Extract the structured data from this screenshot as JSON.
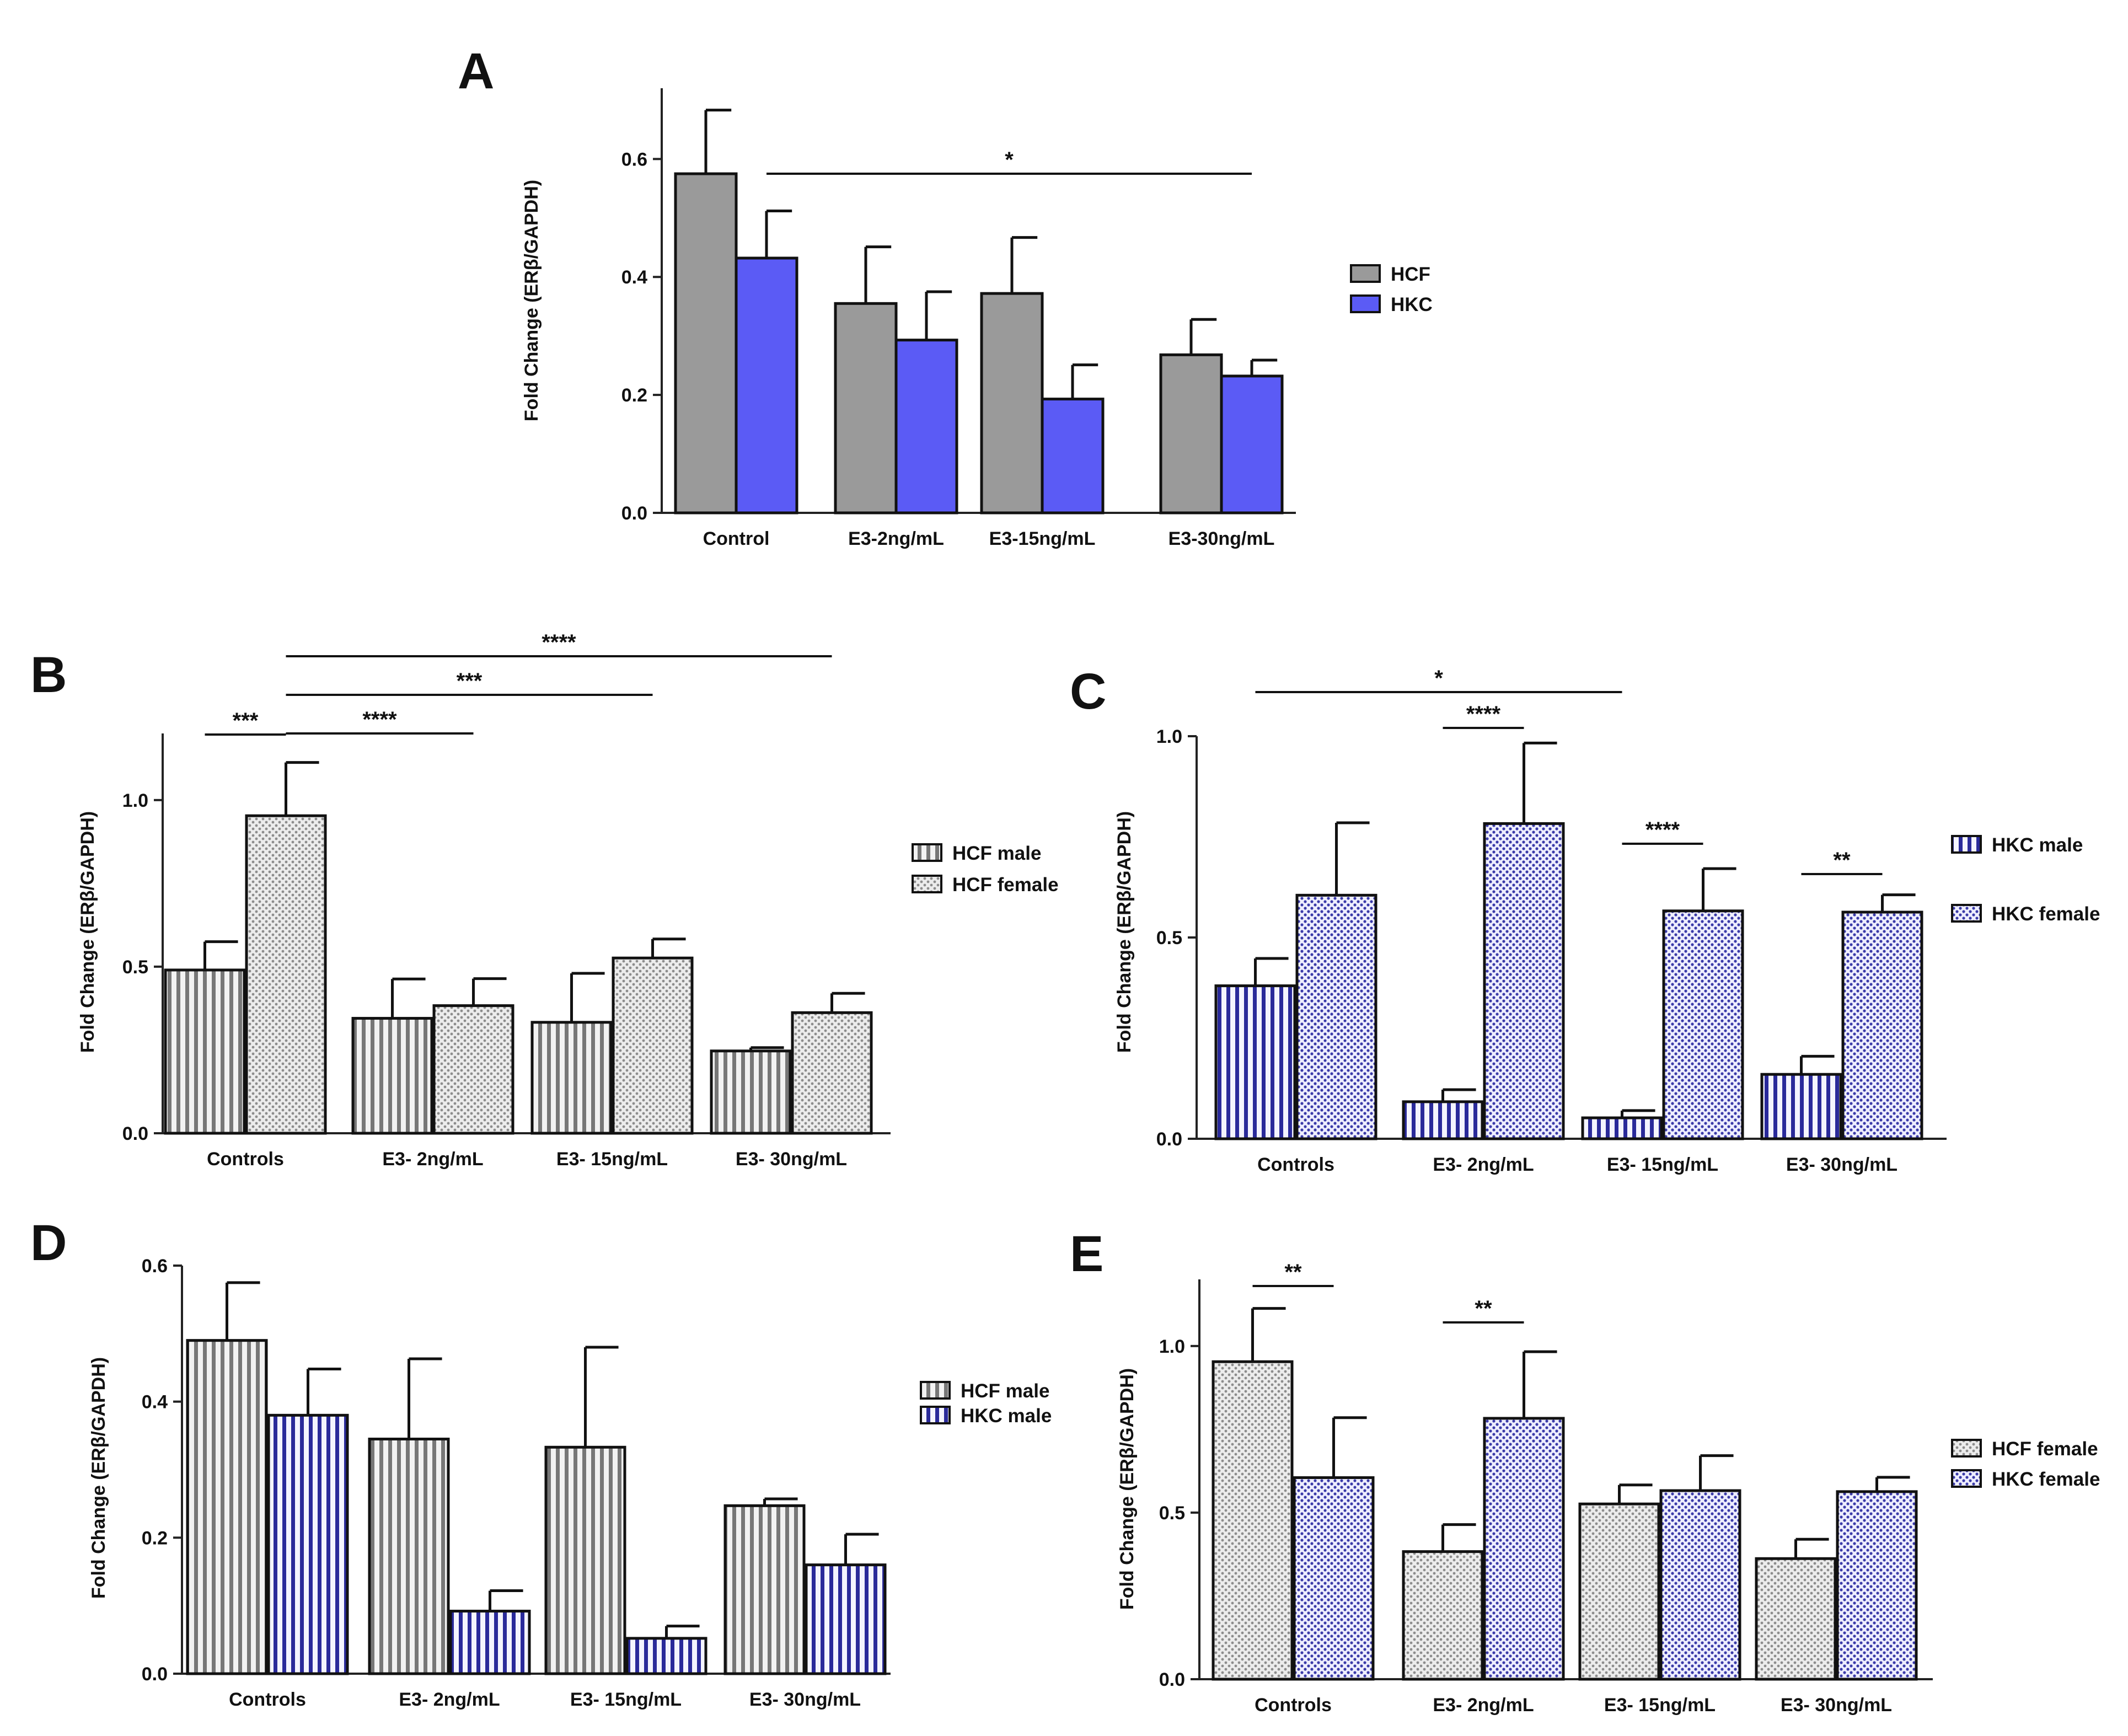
{
  "chart_data": [
    {
      "panel": "A",
      "type": "bar",
      "ylabel": "Fold Change (ERβ/GAPDH)",
      "ylim": [
        0,
        0.72
      ],
      "yticks": [
        0.0,
        0.2,
        0.4,
        0.6
      ],
      "tick_labels": [
        "0.0",
        "0.2",
        "0.4",
        "0.6"
      ],
      "categories": [
        "Control",
        "E3-2ng/mL",
        "E3-15ng/mL",
        "E3-30ng/mL"
      ],
      "series": [
        {
          "name": "HCF",
          "values": [
            0.575,
            0.355,
            0.372,
            0.268
          ],
          "errors": [
            0.108,
            0.096,
            0.095,
            0.06
          ],
          "pattern": "solid",
          "color": "#9a9a9a"
        },
        {
          "name": "HKC",
          "values": [
            0.432,
            0.293,
            0.193,
            0.232
          ],
          "errors": [
            0.08,
            0.082,
            0.058,
            0.027
          ],
          "pattern": "solid",
          "color": "#5b5bf5"
        }
      ],
      "significance": [
        {
          "label": "*",
          "from": [
            0,
            1
          ],
          "to": [
            3,
            1
          ]
        }
      ]
    },
    {
      "panel": "B",
      "type": "bar",
      "ylabel": "Fold Change (ERβ/GAPDH)",
      "ylim": [
        0,
        1.2
      ],
      "yticks": [
        0.0,
        0.5,
        1.0
      ],
      "tick_labels": [
        "0.0",
        "0.5",
        "1.0"
      ],
      "categories": [
        "Controls",
        "E3- 2ng/mL",
        "E3- 15ng/mL",
        "E3- 30ng/mL"
      ],
      "series": [
        {
          "name": "HCF male",
          "values": [
            0.49,
            0.345,
            0.333,
            0.247
          ],
          "errors": [
            0.085,
            0.118,
            0.147,
            0.01
          ],
          "pattern": "vstripe",
          "color": "#777777"
        },
        {
          "name": "HCF female",
          "values": [
            0.953,
            0.383,
            0.526,
            0.362
          ],
          "errors": [
            0.16,
            0.081,
            0.057,
            0.058
          ],
          "pattern": "dots",
          "color": "#8c8c8c"
        }
      ],
      "significance": [
        {
          "label": "***",
          "from": [
            0,
            0
          ],
          "to": [
            0,
            1
          ]
        },
        {
          "label": "****",
          "from": [
            0,
            1
          ],
          "to": [
            1,
            1
          ]
        },
        {
          "label": "***",
          "from": [
            0,
            1
          ],
          "to": [
            2,
            1
          ]
        },
        {
          "label": "****",
          "from": [
            0,
            1
          ],
          "to": [
            3,
            1
          ]
        }
      ]
    },
    {
      "panel": "C",
      "type": "bar",
      "ylabel": "Fold Change (ERβ/GAPDH)",
      "ylim": [
        0,
        1.0
      ],
      "yticks": [
        0.0,
        0.5,
        1.0
      ],
      "tick_labels": [
        "0.0",
        "0.5",
        "1.0"
      ],
      "categories": [
        "Controls",
        "E3- 2ng/mL",
        "E3- 15ng/mL",
        "E3- 30ng/mL"
      ],
      "series": [
        {
          "name": "HKC male",
          "values": [
            0.38,
            0.092,
            0.052,
            0.16
          ],
          "errors": [
            0.068,
            0.03,
            0.018,
            0.045
          ],
          "pattern": "vstripe",
          "color": "#2a2a9a"
        },
        {
          "name": "HKC female",
          "values": [
            0.605,
            0.783,
            0.566,
            0.563
          ],
          "errors": [
            0.18,
            0.2,
            0.105,
            0.043
          ],
          "pattern": "dots",
          "color": "#3a3aa8"
        }
      ],
      "significance": [
        {
          "label": "*",
          "from": [
            0,
            0
          ],
          "to": [
            2,
            0
          ]
        },
        {
          "label": "****",
          "from": [
            1,
            0
          ],
          "to": [
            1,
            1
          ]
        },
        {
          "label": "****",
          "from": [
            2,
            0
          ],
          "to": [
            2,
            1
          ]
        },
        {
          "label": "**",
          "from": [
            3,
            0
          ],
          "to": [
            3,
            1
          ]
        }
      ]
    },
    {
      "panel": "D",
      "type": "bar",
      "ylabel": "Fold Change (ERβ/GAPDH)",
      "ylim": [
        0,
        0.6
      ],
      "yticks": [
        0.0,
        0.2,
        0.4,
        0.6
      ],
      "tick_labels": [
        "0.0",
        "0.2",
        "0.4",
        "0.6"
      ],
      "categories": [
        "Controls",
        "E3- 2ng/mL",
        "E3- 15ng/mL",
        "E3- 30ng/mL"
      ],
      "series": [
        {
          "name": "HCF male",
          "values": [
            0.49,
            0.345,
            0.333,
            0.247
          ],
          "errors": [
            0.085,
            0.118,
            0.147,
            0.01
          ],
          "pattern": "vstripe",
          "color": "#777777"
        },
        {
          "name": "HKC male",
          "values": [
            0.38,
            0.092,
            0.052,
            0.16
          ],
          "errors": [
            0.068,
            0.03,
            0.018,
            0.045
          ],
          "pattern": "vstripe",
          "color": "#2a2a9a"
        }
      ],
      "significance": []
    },
    {
      "panel": "E",
      "type": "bar",
      "ylabel": "Fold Change (ERβ/GAPDH)",
      "ylim": [
        0,
        1.2
      ],
      "yticks": [
        0.0,
        0.5,
        1.0
      ],
      "tick_labels": [
        "0.0",
        "0.5",
        "1.0"
      ],
      "categories": [
        "Controls",
        "E3- 2ng/mL",
        "E3- 15ng/mL",
        "E3- 30ng/mL"
      ],
      "series": [
        {
          "name": "HCF female",
          "values": [
            0.953,
            0.383,
            0.526,
            0.362
          ],
          "errors": [
            0.16,
            0.081,
            0.057,
            0.058
          ],
          "pattern": "dots",
          "color": "#8c8c8c"
        },
        {
          "name": "HKC female",
          "values": [
            0.605,
            0.783,
            0.566,
            0.563
          ],
          "errors": [
            0.18,
            0.2,
            0.105,
            0.043
          ],
          "pattern": "dots",
          "color": "#3a3aa8"
        }
      ],
      "significance": [
        {
          "label": "**",
          "from": [
            0,
            0
          ],
          "to": [
            0,
            1
          ]
        },
        {
          "label": "**",
          "from": [
            1,
            0
          ],
          "to": [
            1,
            1
          ]
        }
      ]
    }
  ]
}
